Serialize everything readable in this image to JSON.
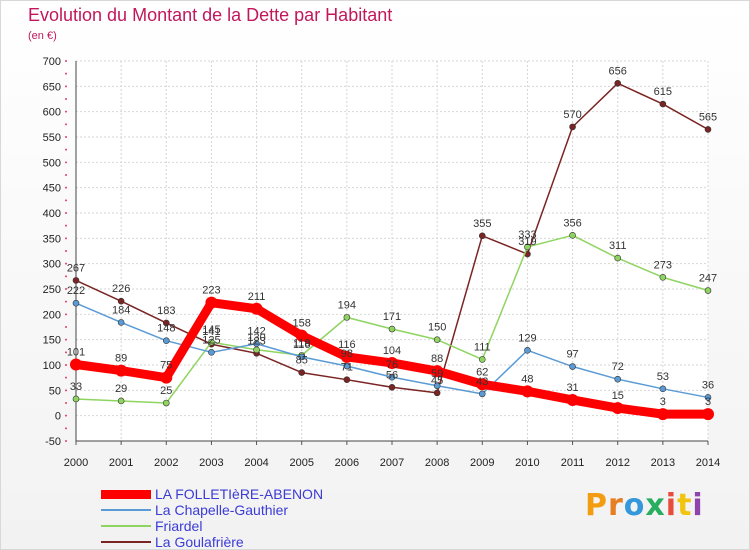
{
  "header": {
    "title": "Evolution du Montant de la Dette par Habitant",
    "unit": "(en €)"
  },
  "brand": {
    "text": "Proxiti",
    "letter_colors": [
      "#f39c12",
      "#e67e22",
      "#3498db",
      "#27ae60",
      "#e74c3c",
      "#f1c40f",
      "#8e44ad"
    ]
  },
  "chart_data": {
    "type": "line",
    "title": "Evolution du Montant de la Dette par Habitant",
    "ylabel": "(en €)",
    "xlabel": "",
    "x": [
      2000,
      2001,
      2002,
      2003,
      2004,
      2005,
      2006,
      2007,
      2008,
      2009,
      2010,
      2011,
      2012,
      2013,
      2014
    ],
    "ylim": [
      -50,
      700
    ],
    "yticks": [
      -50,
      0,
      50,
      100,
      150,
      200,
      250,
      300,
      350,
      400,
      450,
      500,
      550,
      600,
      650,
      700
    ],
    "grid": true,
    "legend_position": "bottom-left",
    "series": [
      {
        "name": "La Goulafrière",
        "color": "#7b2424",
        "values": [
          267,
          226,
          183,
          141,
          123,
          85,
          71,
          56,
          45,
          355,
          319,
          570,
          656,
          615,
          565
        ],
        "labels": [
          "267",
          "226",
          "183",
          "141",
          "123",
          "85",
          "71",
          "56",
          "45",
          "355",
          "319",
          "570",
          "656",
          "615",
          "565"
        ]
      },
      {
        "name": "Friardel",
        "color": "#8fd460",
        "values": [
          33,
          29,
          25,
          145,
          130,
          119,
          194,
          171,
          150,
          111,
          333,
          356,
          311,
          273,
          247
        ],
        "labels": [
          "33",
          "29",
          "25",
          "145",
          "130",
          "119",
          "194",
          "171",
          "150",
          "111",
          "333",
          "356",
          "311",
          "273",
          "247"
        ]
      },
      {
        "name": "La Chapelle-Gauthier",
        "color": "#5b9bd5",
        "values": [
          222,
          184,
          148,
          125,
          142,
          116,
          98,
          76,
          59,
          43,
          129,
          97,
          72,
          53,
          36
        ],
        "labels": [
          "222",
          "184",
          "148",
          "125",
          "142",
          "116",
          "98",
          "76",
          "59",
          "43",
          "129",
          "97",
          "72",
          "53",
          "36"
        ]
      },
      {
        "name": "LA FOLLETIèRE-ABENON",
        "color": "#ff0000",
        "values": [
          101,
          89,
          75,
          223,
          211,
          158,
          116,
          104,
          88,
          62,
          48,
          31,
          15,
          3,
          3
        ],
        "labels": [
          "101",
          "89",
          "75",
          "223",
          "211",
          "158",
          "116",
          "104",
          "88",
          "62",
          "48",
          "31",
          "15",
          "3",
          "3"
        ]
      }
    ]
  }
}
